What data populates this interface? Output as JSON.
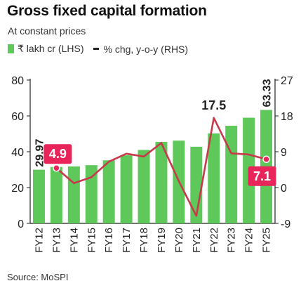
{
  "title": "Gross fixed capital formation",
  "subtitle": "At constant prices",
  "legend": {
    "bars_label": "₹ lakh cr (LHS)",
    "line_label": "% chg, y-o-y (RHS)"
  },
  "source": "Source: MoSPI",
  "colors": {
    "bar": "#5fc85a",
    "line": "#c63a4c",
    "callout": "#e8245a",
    "axis": "#222222"
  },
  "chart_data": {
    "type": "bar",
    "categories": [
      "FY12",
      "FY13",
      "FY14",
      "FY15",
      "FY16",
      "FY17",
      "FY18",
      "FY19",
      "FY20",
      "FY21",
      "FY22",
      "FY23",
      "FY24",
      "FY25"
    ],
    "series": [
      {
        "axis": "left",
        "type": "bar",
        "values": [
          29.97,
          31.5,
          31.8,
          32.5,
          35.2,
          38.0,
          41.0,
          45.5,
          46.2,
          42.8,
          50.2,
          54.5,
          59.0,
          63.33
        ]
      },
      {
        "axis": "right",
        "type": "line",
        "values": [
          null,
          4.9,
          1.1,
          2.6,
          6.5,
          8.5,
          7.8,
          11.2,
          1.6,
          -7.1,
          17.5,
          8.6,
          8.3,
          7.1
        ]
      }
    ],
    "left_axis": {
      "ticks": [
        0,
        20,
        40,
        60,
        80
      ],
      "ylim": [
        0,
        80
      ]
    },
    "right_axis": {
      "ticks": [
        -9,
        0,
        9,
        18,
        27
      ],
      "ylim": [
        -9,
        27
      ]
    },
    "data_labels": [
      {
        "text": "29.97",
        "category": "FY12",
        "series": "bar"
      },
      {
        "text": "63.33",
        "category": "FY25",
        "series": "bar"
      },
      {
        "text": "17.5",
        "category": "FY22",
        "series": "line"
      }
    ],
    "callouts": [
      {
        "text": "4.9",
        "category": "FY13"
      },
      {
        "text": "7.1",
        "category": "FY25"
      }
    ]
  }
}
